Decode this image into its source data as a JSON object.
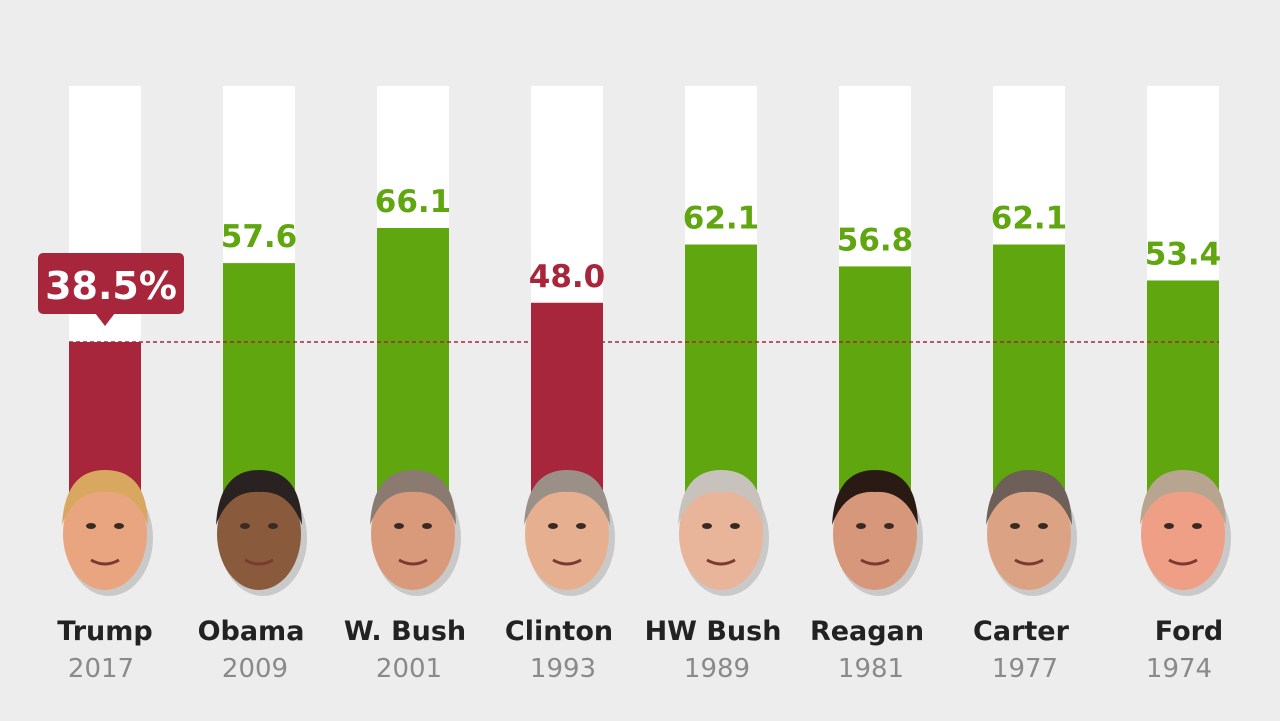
{
  "chart_data": {
    "type": "bar",
    "categories": [
      "Trump",
      "Obama",
      "W. Bush",
      "Clinton",
      "HW Bush",
      "Reagan",
      "Carter",
      "Ford"
    ],
    "years": [
      "2017",
      "2009",
      "2001",
      "1993",
      "1989",
      "1981",
      "1977",
      "1974"
    ],
    "values": [
      38.5,
      57.6,
      66.1,
      48.0,
      62.1,
      56.8,
      62.1,
      53.4
    ],
    "value_labels": [
      "38.5%",
      "57.6",
      "66.1",
      "48.0",
      "62.1",
      "56.8",
      "62.1",
      "53.4"
    ],
    "highlight_index": 0,
    "reference_line": 38.5,
    "ylim": [
      0,
      100
    ],
    "grid": false,
    "colors": {
      "above_50": "#5fa60f",
      "below_50": "#a8263b",
      "track": "#ffffff",
      "background": "#ededed",
      "name": "#222222",
      "year": "#8a8a8a"
    }
  }
}
